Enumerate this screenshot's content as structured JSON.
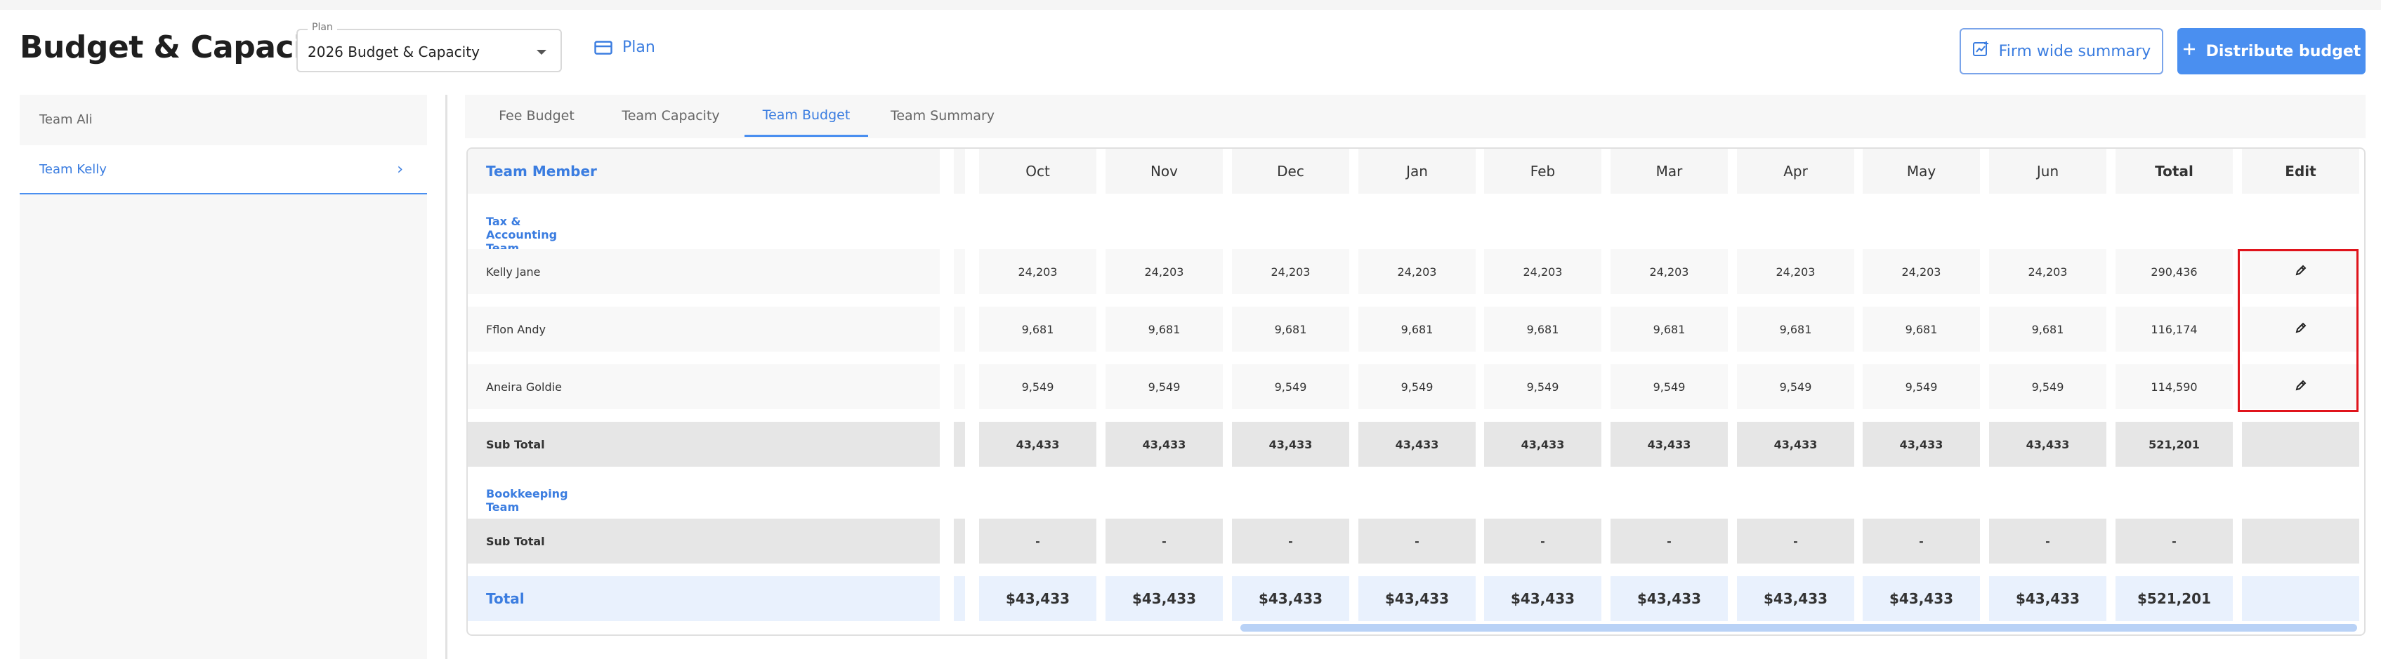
{
  "header": {
    "title": "Budget & Capacity",
    "plan_select": {
      "legend": "Plan",
      "value": "2026 Budget & Capacity"
    },
    "plan_link": "Plan",
    "firm_wide_button": "Firm wide summary",
    "distribute_button": "Distribute budget"
  },
  "sidebar": {
    "items": [
      {
        "label": "Team Ali"
      },
      {
        "label": "Team Kelly",
        "selected": true
      }
    ]
  },
  "tabs": [
    {
      "label": "Fee Budget"
    },
    {
      "label": "Team Capacity"
    },
    {
      "label": "Team Budget",
      "active": true
    },
    {
      "label": "Team Summary"
    }
  ],
  "table": {
    "member_header": "Team Member",
    "columns": [
      "Oct",
      "Nov",
      "Dec",
      "Jan",
      "Feb",
      "Mar",
      "Apr",
      "May",
      "Jun",
      "Total",
      "Edit"
    ],
    "groups": [
      {
        "label": "Tax & Accounting Team",
        "rows": [
          {
            "name": "Kelly Jane",
            "values": [
              "24,203",
              "24,203",
              "24,203",
              "24,203",
              "24,203",
              "24,203",
              "24,203",
              "24,203",
              "24,203",
              "290,436"
            ]
          },
          {
            "name": "Fflon Andy",
            "values": [
              "9,681",
              "9,681",
              "9,681",
              "9,681",
              "9,681",
              "9,681",
              "9,681",
              "9,681",
              "9,681",
              "116,174"
            ]
          },
          {
            "name": "Aneira Goldie",
            "values": [
              "9,549",
              "9,549",
              "9,549",
              "9,549",
              "9,549",
              "9,549",
              "9,549",
              "9,549",
              "9,549",
              "114,590"
            ]
          }
        ],
        "subtotal": {
          "label": "Sub Total",
          "values": [
            "43,433",
            "43,433",
            "43,433",
            "43,433",
            "43,433",
            "43,433",
            "43,433",
            "43,433",
            "43,433",
            "521,201"
          ]
        }
      },
      {
        "label": "Bookkeeping Team",
        "rows": [],
        "subtotal": {
          "label": "Sub Total",
          "values": [
            "-",
            "-",
            "-",
            "-",
            "-",
            "-",
            "-",
            "-",
            "-",
            "-"
          ]
        }
      }
    ],
    "total": {
      "label": "Total",
      "values": [
        "$43,433",
        "$43,433",
        "$43,433",
        "$43,433",
        "$43,433",
        "$43,433",
        "$43,433",
        "$43,433",
        "$43,433",
        "$521,201"
      ]
    }
  },
  "icons": {
    "plan": "card-icon",
    "firm_wide": "chart-report-icon",
    "distribute": "plus-icon",
    "edit": "pencil-icon",
    "sidebar_chevron": "chevron-right-icon"
  },
  "colors": {
    "accent": "#4a8ff0",
    "link": "#3b7de0",
    "highlight": "#e0141c",
    "subtotal_bg": "#e6e6e6",
    "total_bg": "#e9f1fd"
  }
}
